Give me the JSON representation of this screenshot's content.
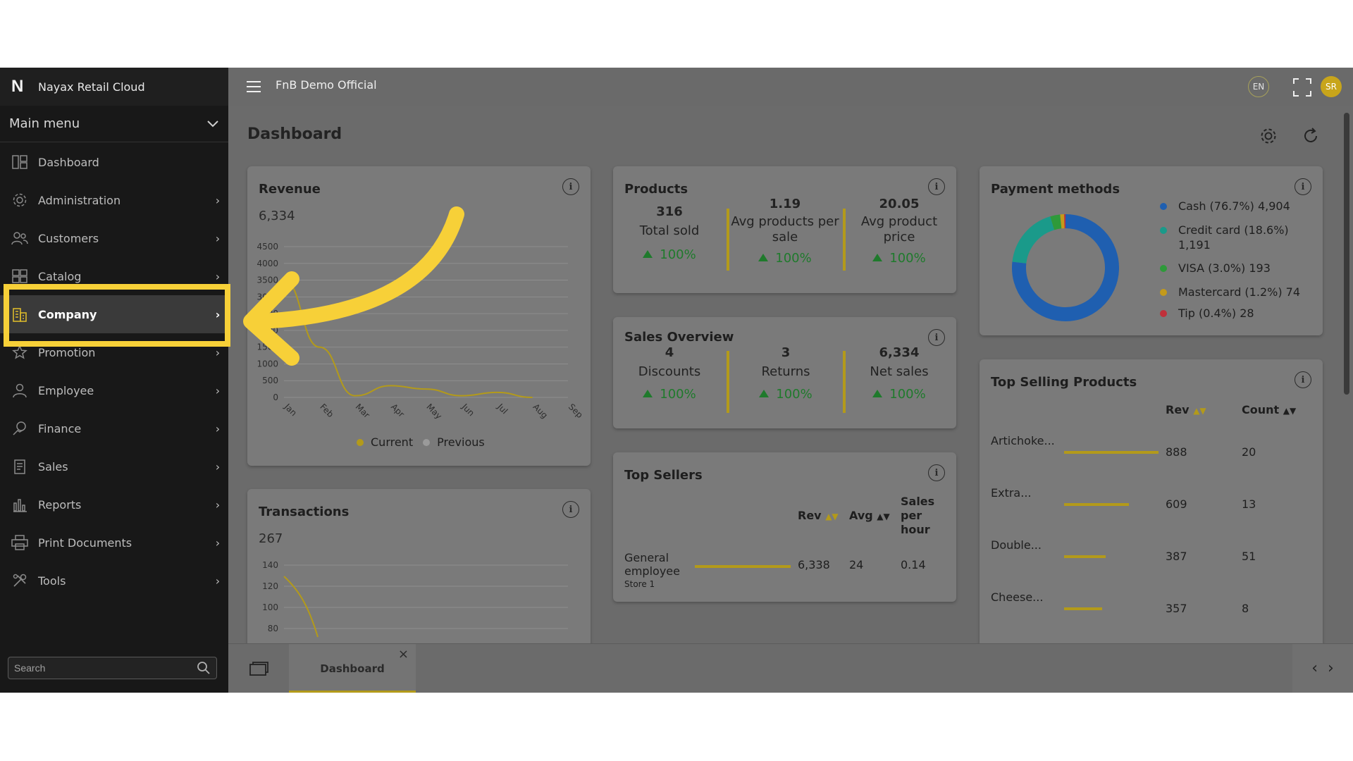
{
  "app": {
    "brand": "Nayax Retail Cloud",
    "logo": "N",
    "company": "FnB Demo Official",
    "lang": "EN",
    "user_initials": "SR"
  },
  "sidebar": {
    "main_menu": "Main menu",
    "items": [
      {
        "label": "Dashboard",
        "icon": "dashboard-icon"
      },
      {
        "label": "Administration",
        "icon": "gear-icon"
      },
      {
        "label": "Customers",
        "icon": "users-icon"
      },
      {
        "label": "Catalog",
        "icon": "grid-icon"
      },
      {
        "label": "Company",
        "icon": "building-icon"
      },
      {
        "label": "Promotion",
        "icon": "star-icon"
      },
      {
        "label": "Employee",
        "icon": "person-icon"
      },
      {
        "label": "Finance",
        "icon": "finance-icon"
      },
      {
        "label": "Sales",
        "icon": "receipt-icon"
      },
      {
        "label": "Reports",
        "icon": "bar-chart-icon"
      },
      {
        "label": "Print Documents",
        "icon": "printer-icon"
      },
      {
        "label": "Tools",
        "icon": "tools-icon"
      }
    ],
    "search_placeholder": "Search"
  },
  "page": {
    "title": "Dashboard"
  },
  "revenue": {
    "title": "Revenue",
    "total": "6,334",
    "yticks": [
      "4500",
      "4000",
      "3500",
      "3000",
      "2500",
      "2000",
      "1500",
      "1000",
      "500",
      "0"
    ],
    "xticks": [
      "Jan",
      "Feb",
      "Mar",
      "Apr",
      "May",
      "Jun",
      "Jul",
      "Aug",
      "Sep"
    ],
    "legend": [
      "Current",
      "Previous"
    ]
  },
  "chart_data": {
    "type": "line",
    "title": "Revenue",
    "x": [
      "Jan",
      "Feb",
      "Mar",
      "Apr",
      "May",
      "Jun",
      "Jul",
      "Aug"
    ],
    "series": [
      {
        "name": "Current",
        "values": [
          3500,
          1500,
          50,
          350,
          250,
          50,
          150,
          0
        ]
      }
    ],
    "ylim": [
      0,
      4500
    ],
    "legend_position": "bottom",
    "colors": {
      "Current": "#b39a1a",
      "Previous": "#9a9a9a"
    }
  },
  "transactions": {
    "title": "Transactions",
    "total": "267",
    "yticks": [
      "140",
      "120",
      "100",
      "80"
    ]
  },
  "products": {
    "title": "Products",
    "stats": [
      {
        "value": "316",
        "label": "Total sold",
        "pct": "100%"
      },
      {
        "value": "1.19",
        "label": "Avg products per sale",
        "pct": "100%"
      },
      {
        "value": "20.05",
        "label": "Avg product price",
        "pct": "100%"
      }
    ]
  },
  "sales_overview": {
    "title": "Sales Overview",
    "stats": [
      {
        "value": "4",
        "label": "Discounts",
        "pct": "100%"
      },
      {
        "value": "3",
        "label": "Returns",
        "pct": "100%"
      },
      {
        "value": "6,334",
        "label": "Net sales",
        "pct": "100%"
      }
    ]
  },
  "top_sellers": {
    "title": "Top Sellers",
    "columns": [
      "Rev",
      "Avg",
      "Sales per hour"
    ],
    "rows": [
      {
        "name": "General employee",
        "sub": "Store 1",
        "rev": "6,338",
        "avg": "24",
        "sph": "0.14",
        "bar": 1.0
      }
    ]
  },
  "payment_methods": {
    "title": "Payment methods",
    "items": [
      {
        "label": "Cash (76.7%) 4,904",
        "share": 76.7,
        "color": "#1f5fb0"
      },
      {
        "label": "Credit card (18.6%) 1,191",
        "share": 18.6,
        "color": "#1a9a8a"
      },
      {
        "label": "VISA (3.0%) 193",
        "share": 3.0,
        "color": "#2e9a3a"
      },
      {
        "label": "Mastercard (1.2%) 74",
        "share": 1.2,
        "color": "#c49a1a"
      },
      {
        "label": "Tip (0.4%) 28",
        "share": 0.4,
        "color": "#c0303a"
      }
    ]
  },
  "top_products": {
    "title": "Top Selling Products",
    "columns": [
      "Rev",
      "Count"
    ],
    "rows": [
      {
        "name": "Artichoke...",
        "rev": "888",
        "count": "20",
        "bar": 1.0
      },
      {
        "name": "Extra...",
        "rev": "609",
        "count": "13",
        "bar": 0.69
      },
      {
        "name": "Double...",
        "rev": "387",
        "count": "51",
        "bar": 0.44
      },
      {
        "name": "Cheese...",
        "rev": "357",
        "count": "8",
        "bar": 0.4
      }
    ]
  },
  "tabs": [
    {
      "label": "Dashboard"
    }
  ]
}
